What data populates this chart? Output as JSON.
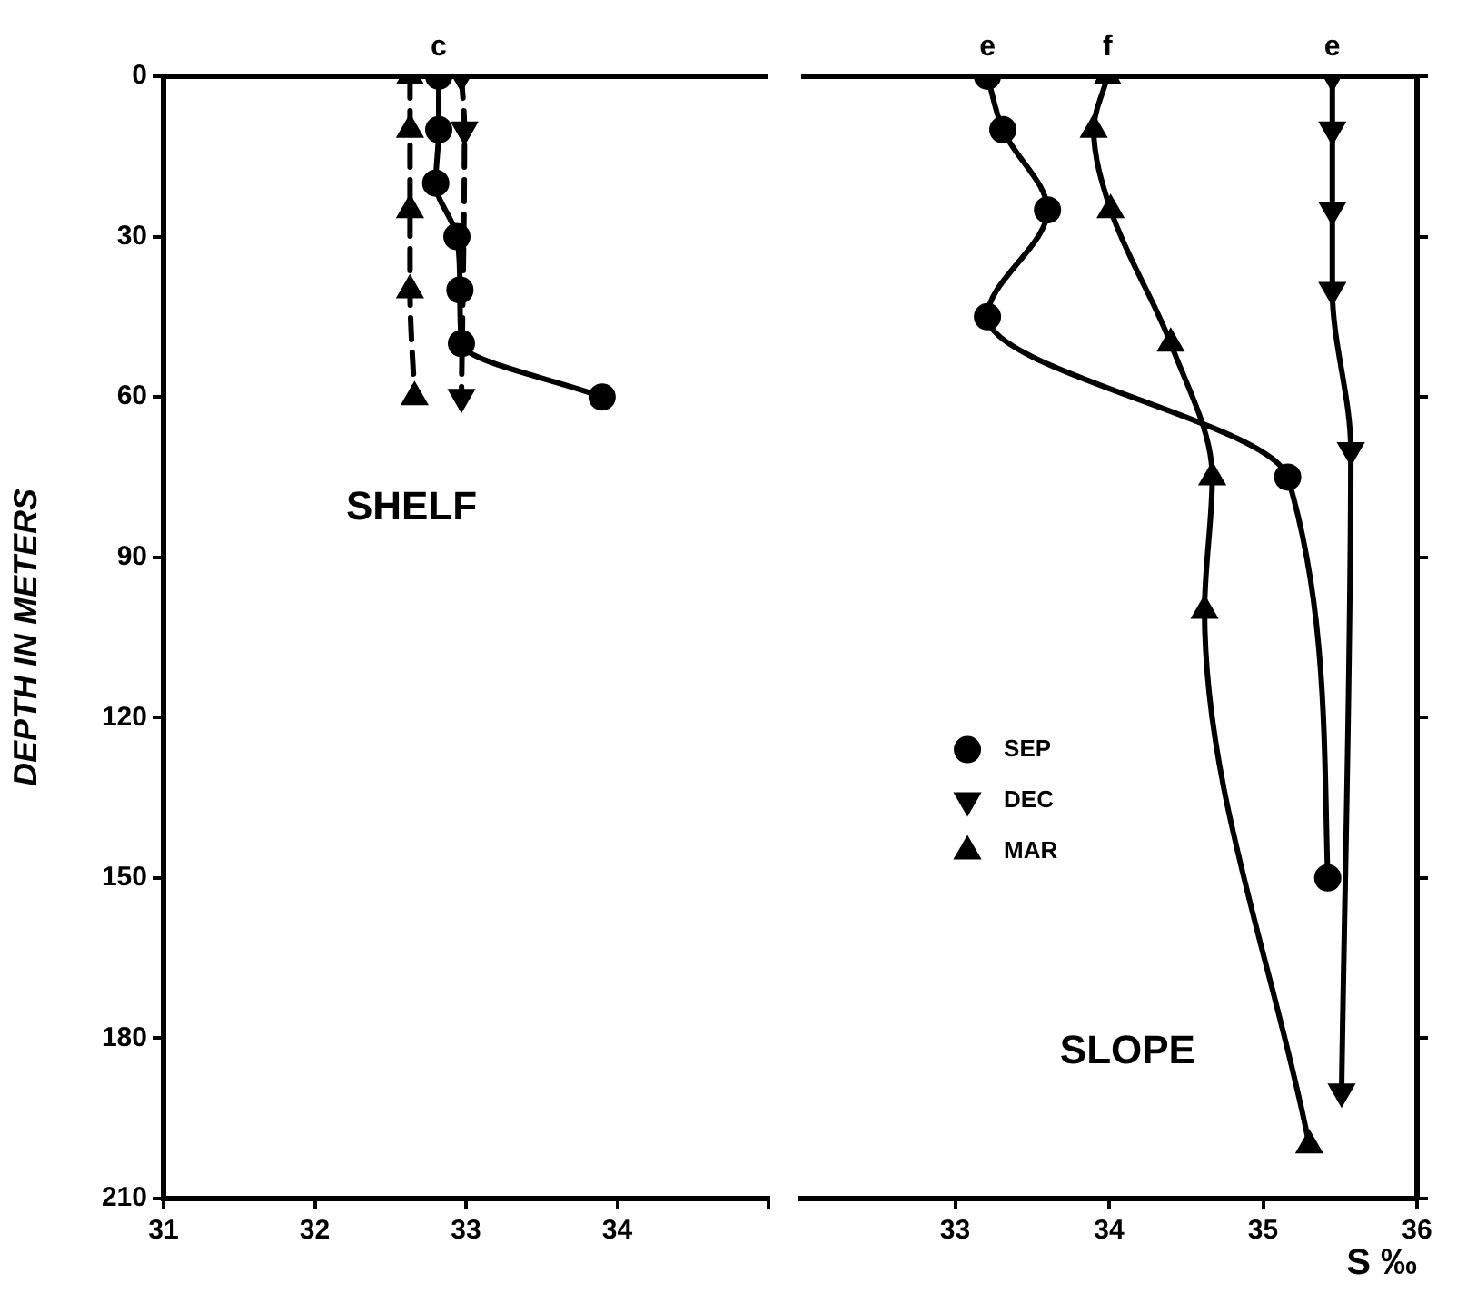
{
  "chart_data": [
    {
      "type": "line",
      "ylabel": "DEPTH IN METERS",
      "xlim": [
        31,
        35
      ],
      "xticks": [
        31,
        32,
        33,
        34,
        {
          "value": 35,
          "label": null
        }
      ],
      "ylim": [
        210,
        0
      ],
      "yticks": [
        0,
        30,
        60,
        90,
        120,
        150,
        180,
        210
      ],
      "grid": false,
      "series": [
        {
          "color": "#000000",
          "marker": "circle",
          "line_style": "solid",
          "x": [
            32.82,
            32.82,
            32.8,
            32.94,
            32.96,
            32.97,
            33.9
          ],
          "values": [
            0,
            10,
            20,
            30,
            40,
            50,
            60
          ]
        },
        {
          "color": "#000000",
          "marker": "triangle-down",
          "line_style": "dashed",
          "x": [
            32.97,
            32.99,
            32.97
          ],
          "values": [
            0,
            10,
            60
          ]
        },
        {
          "color": "#000000",
          "marker": "triangle",
          "line_style": "dashed",
          "x": [
            32.63,
            32.63,
            32.63,
            32.63,
            32.66
          ],
          "values": [
            0,
            10,
            25,
            40,
            60
          ]
        }
      ],
      "annotations": [
        {
          "text": "c",
          "x": 32.82,
          "y": 0
        },
        "SHELF"
      ]
    },
    {
      "type": "line",
      "xlabel": "S ‰",
      "xlim": [
        32,
        36
      ],
      "xticks": [
        33,
        34,
        35,
        36
      ],
      "ylim": [
        210,
        0
      ],
      "yticks": [
        0,
        30,
        60,
        90,
        120,
        150,
        180,
        210
      ],
      "grid": false,
      "tick_labels": "x",
      "legend": "center",
      "series": [
        {
          "name": "SEP",
          "color": "#000000",
          "marker": "circle",
          "line_style": "solid",
          "x": [
            33.21,
            33.31,
            33.6,
            33.21,
            35.16,
            35.42
          ],
          "values": [
            0,
            10,
            25,
            45,
            75,
            150
          ]
        },
        {
          "name": "DEC",
          "color": "#000000",
          "marker": "triangle-down",
          "line_style": "solid",
          "x": [
            35.45,
            35.45,
            35.45,
            35.45,
            35.57,
            35.51
          ],
          "values": [
            0,
            10,
            25,
            40,
            70,
            190
          ]
        },
        {
          "name": "MAR",
          "color": "#000000",
          "marker": "triangle",
          "line_style": "solid",
          "x": [
            33.99,
            33.9,
            34.01,
            34.4,
            34.67,
            34.62,
            35.3
          ],
          "values": [
            0,
            10,
            25,
            50,
            75,
            100,
            200
          ]
        }
      ],
      "annotations": [
        {
          "text": "e",
          "x": 33.21,
          "y": 0
        },
        {
          "text": "f",
          "x": 33.99,
          "y": 0
        },
        {
          "text": "e",
          "x": 35.45,
          "y": 0
        },
        "SLOPE"
      ]
    }
  ]
}
